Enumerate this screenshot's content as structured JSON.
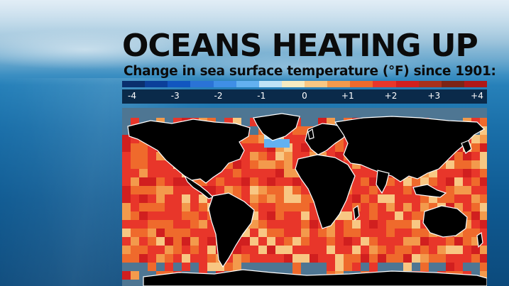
{
  "title": "OCEANS HEATING UP",
  "subtitle": "Change in sea surface temperature (°F) since 1901:",
  "legend": {
    "colors": [
      "#0a2f6e",
      "#0b3f9a",
      "#1156c0",
      "#2a73d6",
      "#3f8fe6",
      "#63b1f0",
      "#bfe3f7",
      "#f6ecc2",
      "#f8c783",
      "#f39a4c",
      "#ef6a2c",
      "#e8362a",
      "#d11f1f",
      "#a8301c",
      "#7c2417",
      "#b01818"
    ],
    "labels": [
      {
        "text": "-4",
        "value": -4
      },
      {
        "text": "-3",
        "value": -3
      },
      {
        "text": "-2",
        "value": -2
      },
      {
        "text": "-1",
        "value": -1
      },
      {
        "text": "0",
        "value": 0
      },
      {
        "text": "+1",
        "value": 1
      },
      {
        "text": "+2",
        "value": 2
      },
      {
        "text": "+3",
        "value": 3
      },
      {
        "text": "+4",
        "value": 4
      }
    ],
    "range": [
      -4,
      4
    ]
  },
  "map": {
    "land_color": "#000000",
    "border_color": "#ffffff",
    "no_data_color": "#4e7693"
  }
}
